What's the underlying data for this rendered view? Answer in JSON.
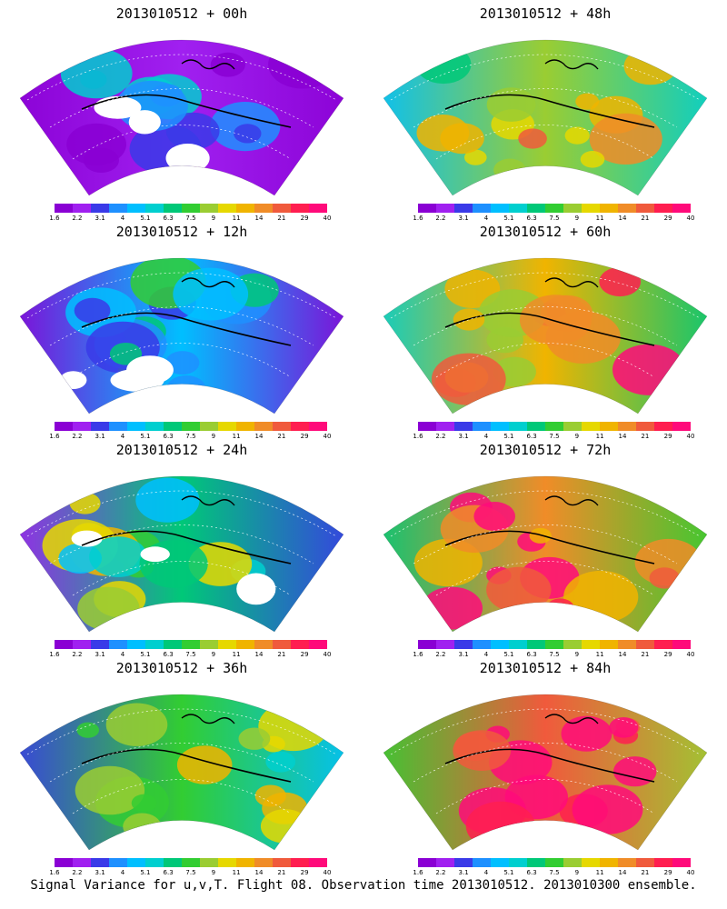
{
  "panels": [
    {
      "title": "2013010512 + 00h",
      "level": 0.1
    },
    {
      "title": "2013010512 + 48h",
      "level": 0.6
    },
    {
      "title": "2013010512 + 12h",
      "level": 0.25
    },
    {
      "title": "2013010512 + 60h",
      "level": 0.7
    },
    {
      "title": "2013010512 + 24h",
      "level": 0.4
    },
    {
      "title": "2013010512 + 72h",
      "level": 0.78
    },
    {
      "title": "2013010512 + 36h",
      "level": 0.5
    },
    {
      "title": "2013010512 + 84h",
      "level": 0.85
    }
  ],
  "colorbar": {
    "colors": [
      "#8a00d4",
      "#a020f0",
      "#3a3ae8",
      "#1e90ff",
      "#00bfff",
      "#00cfcf",
      "#00c878",
      "#32cd32",
      "#9acd32",
      "#e6d800",
      "#f0b400",
      "#f08c28",
      "#f05a3c",
      "#ff1e50",
      "#ff0a7a"
    ],
    "labels": [
      "1.6",
      "2.2",
      "3.1",
      "4",
      "5.1",
      "6.3",
      "7.5",
      "9",
      "11",
      "14",
      "21",
      "29",
      "40"
    ]
  },
  "caption": "Signal Variance for u,v,T. Flight 08. Observation time 2013010512. 2013010300 ensemble."
}
